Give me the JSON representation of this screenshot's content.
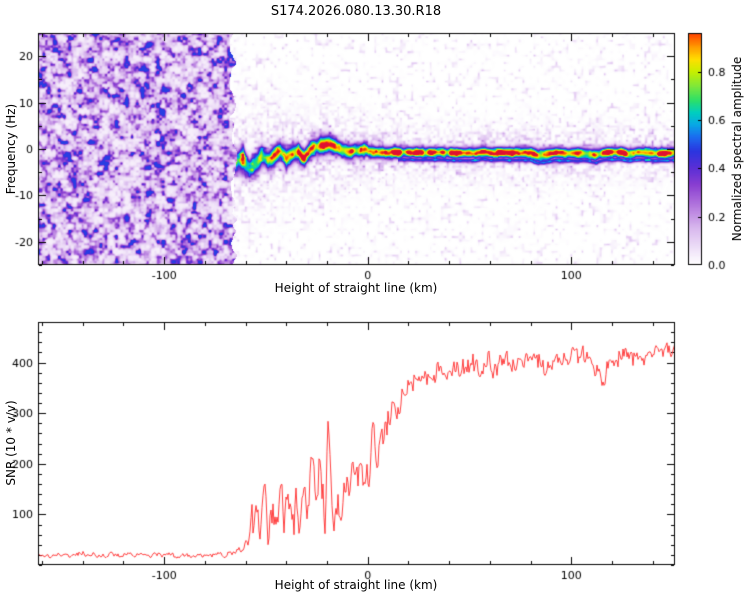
{
  "title": "S174.2026.080.13.30.R18",
  "chart_data": [
    {
      "type": "heatmap",
      "xlabel": "Height of straight line (km)",
      "ylabel": "Frequency (Hz)",
      "xlim": [
        -162,
        151
      ],
      "ylim": [
        -25,
        25
      ],
      "xticks": [
        -100,
        0,
        100
      ],
      "xminor_step": 20,
      "yticks": [
        -20,
        -10,
        0,
        10,
        20
      ],
      "yminor_step": 5,
      "noise_boundary_km": -66,
      "noise_max_amplitude": 0.48,
      "colorbar": {
        "label": "Normalized spectral amplitude",
        "ticks": [
          0.0,
          0.2,
          0.4,
          0.6,
          0.8
        ],
        "vmax": 0.96
      },
      "colormap": [
        [
          0.0,
          "#ffffff"
        ],
        [
          0.05,
          "#f3e8fa"
        ],
        [
          0.15,
          "#d9b8ee"
        ],
        [
          0.25,
          "#b173dd"
        ],
        [
          0.33,
          "#8a3fd1"
        ],
        [
          0.4,
          "#5b2fd6"
        ],
        [
          0.47,
          "#2b35e0"
        ],
        [
          0.53,
          "#1b6ef0"
        ],
        [
          0.58,
          "#09a8e6"
        ],
        [
          0.63,
          "#00cfc0"
        ],
        [
          0.68,
          "#2ce06a"
        ],
        [
          0.74,
          "#7fe83a"
        ],
        [
          0.8,
          "#c8f000"
        ],
        [
          0.85,
          "#ffe000"
        ],
        [
          0.9,
          "#ffa000"
        ],
        [
          0.95,
          "#ff5000"
        ],
        [
          1.0,
          "#e01030"
        ]
      ],
      "signal_band": {
        "height_km": [
          -64,
          -61,
          -58,
          -55,
          -52,
          -49,
          -46,
          -43,
          -40,
          -37,
          -34,
          -31,
          -28,
          -25,
          -22,
          -19,
          -16,
          -13,
          -10,
          -7,
          -4,
          -1,
          2,
          6,
          10,
          15,
          20,
          30,
          40,
          50,
          60,
          70,
          80,
          84,
          88,
          92,
          100,
          108,
          112,
          116,
          120,
          130,
          140,
          151
        ],
        "center_hz": [
          -3.2,
          -2.0,
          -3.8,
          -2.6,
          -1.4,
          -3.0,
          -2.2,
          -1.0,
          -2.6,
          -1.6,
          -0.6,
          -1.8,
          -0.8,
          0.2,
          0.8,
          1.6,
          1.0,
          0.4,
          0.0,
          -0.4,
          -0.6,
          -0.4,
          -0.6,
          -0.7,
          -0.8,
          -0.8,
          -0.8,
          -0.8,
          -0.8,
          -0.8,
          -0.8,
          -0.8,
          -0.9,
          -1.4,
          -1.1,
          -0.8,
          -0.8,
          -1.0,
          -1.3,
          -0.9,
          -0.8,
          -0.8,
          -0.8,
          -0.8
        ],
        "amplitude": [
          0.8,
          0.85,
          0.75,
          0.85,
          0.8,
          0.75,
          0.85,
          0.85,
          0.8,
          0.85,
          0.85,
          0.85,
          0.9,
          0.9,
          0.95,
          0.95,
          0.9,
          0.9,
          0.9,
          0.9,
          0.92,
          0.95,
          0.95,
          0.95,
          0.95,
          0.95,
          0.97,
          0.97,
          0.97,
          0.97,
          0.97,
          0.97,
          0.9,
          0.85,
          0.9,
          0.95,
          0.97,
          0.95,
          0.9,
          0.95,
          0.97,
          0.97,
          0.97,
          0.97
        ],
        "width_hz": [
          2.0,
          2.2,
          1.9,
          2.0,
          1.9,
          1.9,
          1.8,
          1.7,
          1.8,
          1.7,
          1.6,
          1.6,
          1.6,
          1.6,
          1.7,
          1.7,
          1.5,
          1.4,
          1.4,
          1.3,
          1.3,
          1.2,
          1.2,
          1.1,
          1.1,
          1.05,
          1.0,
          1.0,
          1.0,
          1.0,
          1.0,
          1.0,
          1.1,
          1.3,
          1.2,
          1.0,
          1.0,
          1.1,
          1.2,
          1.0,
          1.0,
          1.0,
          1.0,
          1.0
        ]
      }
    },
    {
      "type": "line",
      "color": "#ff2a2a",
      "xlabel": "Height of straight line (km)",
      "ylabel": "SNR (10 * v/v)",
      "xlim": [
        -162,
        151
      ],
      "ylim": [
        0,
        480
      ],
      "xticks": [
        -100,
        0,
        100
      ],
      "xminor_step": 20,
      "yticks": [
        100,
        200,
        300,
        400
      ],
      "yminor_step": 20,
      "x": [
        -162,
        -150,
        -140,
        -130,
        -120,
        -110,
        -100,
        -90,
        -80,
        -72,
        -66,
        -62,
        -58,
        -55,
        -53,
        -51,
        -49,
        -47,
        -45,
        -43,
        -41,
        -39,
        -37,
        -35,
        -33,
        -31,
        -29,
        -27,
        -25,
        -23,
        -21,
        -19,
        -17,
        -15,
        -13,
        -11,
        -9,
        -7,
        -5,
        -3,
        -1,
        2,
        5,
        8,
        12,
        16,
        20,
        25,
        30,
        35,
        40,
        50,
        60,
        70,
        80,
        90,
        100,
        110,
        115,
        120,
        130,
        140,
        151
      ],
      "y": [
        18,
        18,
        20,
        18,
        20,
        18,
        20,
        18,
        20,
        20,
        22,
        30,
        60,
        150,
        60,
        200,
        60,
        140,
        50,
        180,
        80,
        170,
        70,
        140,
        90,
        190,
        110,
        230,
        120,
        200,
        100,
        300,
        80,
        150,
        100,
        180,
        120,
        200,
        160,
        210,
        180,
        240,
        230,
        270,
        300,
        330,
        350,
        365,
        375,
        380,
        385,
        395,
        395,
        400,
        405,
        400,
        410,
        405,
        360,
        410,
        415,
        420,
        430
      ],
      "jitter": [
        8,
        8,
        8,
        8,
        8,
        8,
        8,
        8,
        8,
        8,
        10,
        18,
        40,
        90,
        45,
        80,
        45,
        80,
        40,
        90,
        60,
        90,
        55,
        85,
        70,
        95,
        80,
        110,
        85,
        95,
        70,
        80,
        45,
        75,
        55,
        75,
        55,
        70,
        60,
        65,
        60,
        65,
        60,
        60,
        55,
        45,
        40,
        38,
        35,
        32,
        32,
        33,
        32,
        33,
        32,
        35,
        32,
        35,
        45,
        32,
        30,
        30,
        28
      ]
    }
  ]
}
